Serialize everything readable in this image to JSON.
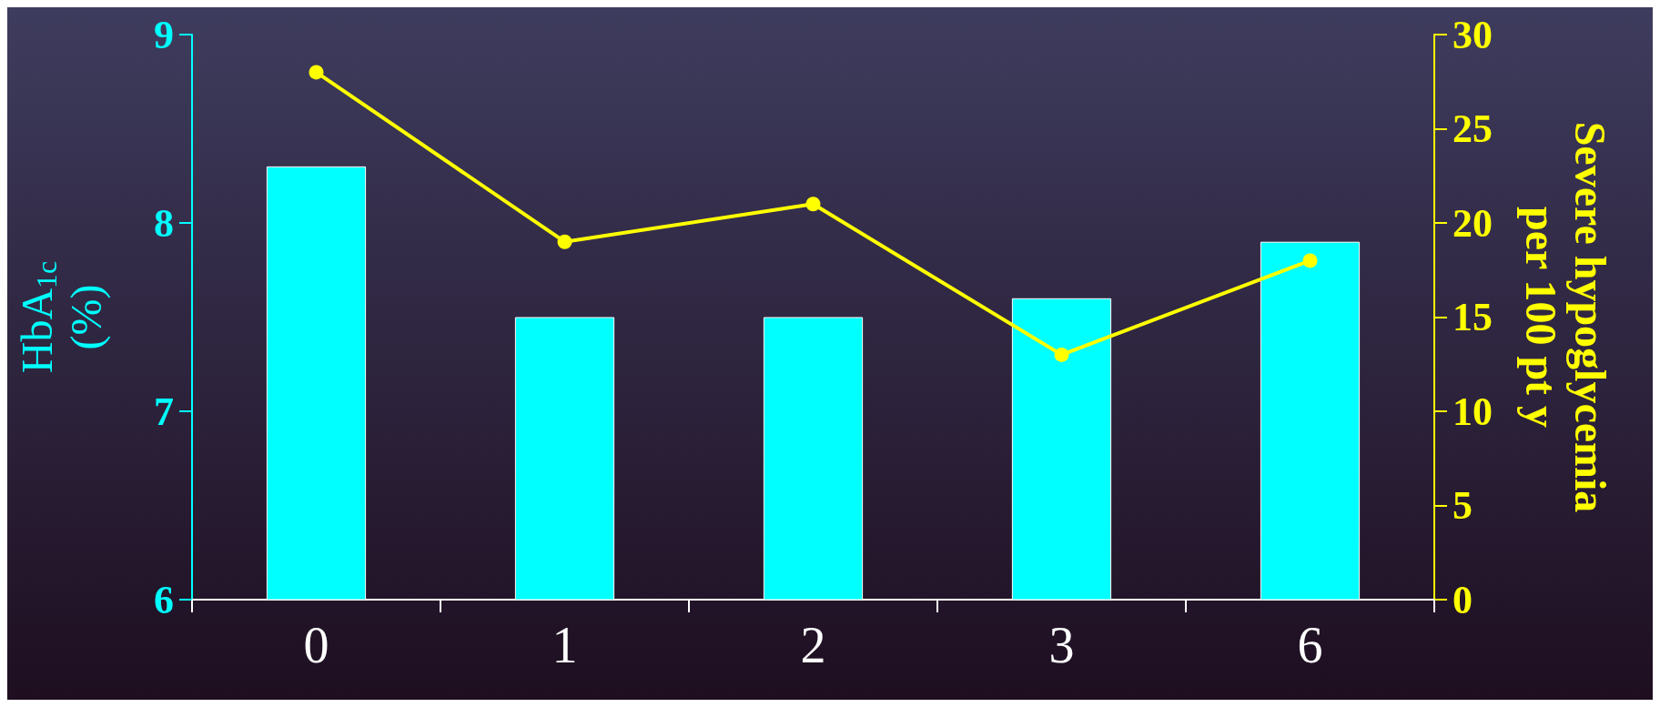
{
  "chart_data": {
    "type": "bar",
    "categories": [
      "0",
      "1",
      "2",
      "3",
      "6"
    ],
    "xlabel": null,
    "ylabel": "HbA$_{1c}$\n(%)",
    "y2label": "Severe hypoglycemia\nper 100 pt y",
    "ylim": [
      6,
      9
    ],
    "yticks": [
      6,
      7,
      8,
      9
    ],
    "y2lim": [
      0,
      30
    ],
    "y2ticks": [
      0,
      5,
      10,
      15,
      20,
      25,
      30
    ],
    "grid": false,
    "series": [
      {
        "color": "#00ffff",
        "values": [
          8.3,
          7.5,
          7.5,
          7.6,
          7.9
        ]
      },
      {
        "type": "line",
        "axis": "y2",
        "color": "#ffff00",
        "marker": "circle",
        "values": [
          28,
          19,
          21,
          13,
          18
        ]
      }
    ]
  }
}
